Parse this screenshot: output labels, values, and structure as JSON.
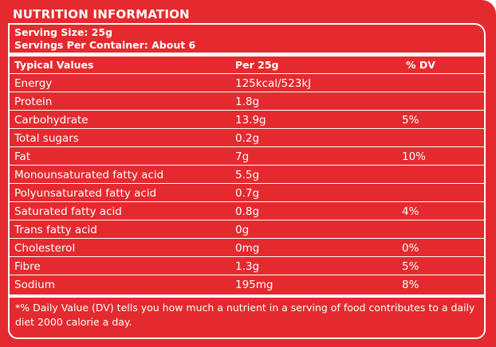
{
  "title": "NUTRITION INFORMATION",
  "serving_size": "Serving Size: 25g",
  "servings_per_container": "Servings Per Container: About 6",
  "columns": [
    "Typical Values",
    "Per 25g",
    "% DV"
  ],
  "rows": [
    {
      "name": "Energy",
      "per": "125kcal/523kJ",
      "dv": ""
    },
    {
      "name": "Protein",
      "per": "1.8g",
      "dv": ""
    },
    {
      "name": "Carbohydrate",
      "per": "13.9g",
      "dv": "5%"
    },
    {
      "name": "Total sugars",
      "per": "0.2g",
      "dv": ""
    },
    {
      "name": "Fat",
      "per": "7g",
      "dv": "10%"
    },
    {
      "name": "Monounsaturated fatty acid",
      "per": "5.5g",
      "dv": ""
    },
    {
      "name": "Polyunsaturated fatty acid",
      "per": "0.7g",
      "dv": ""
    },
    {
      "name": "Saturated fatty acid",
      "per": "0.8g",
      "dv": "4%"
    },
    {
      "name": "Trans fatty acid",
      "per": "0g",
      "dv": ""
    },
    {
      "name": "Cholesterol",
      "per": "0mg",
      "dv": "0%"
    },
    {
      "name": "Fibre",
      "per": "1.3g",
      "dv": "5%"
    },
    {
      "name": "Sodium",
      "per": "195mg",
      "dv": "8%"
    }
  ],
  "footnote": "*% Daily Value (DV) tells you how much a nutrient in a serving of food contributes to a daily diet 2000 calorie a day.",
  "colors": {
    "background": "#e42a2f",
    "text": "#ffffff"
  }
}
